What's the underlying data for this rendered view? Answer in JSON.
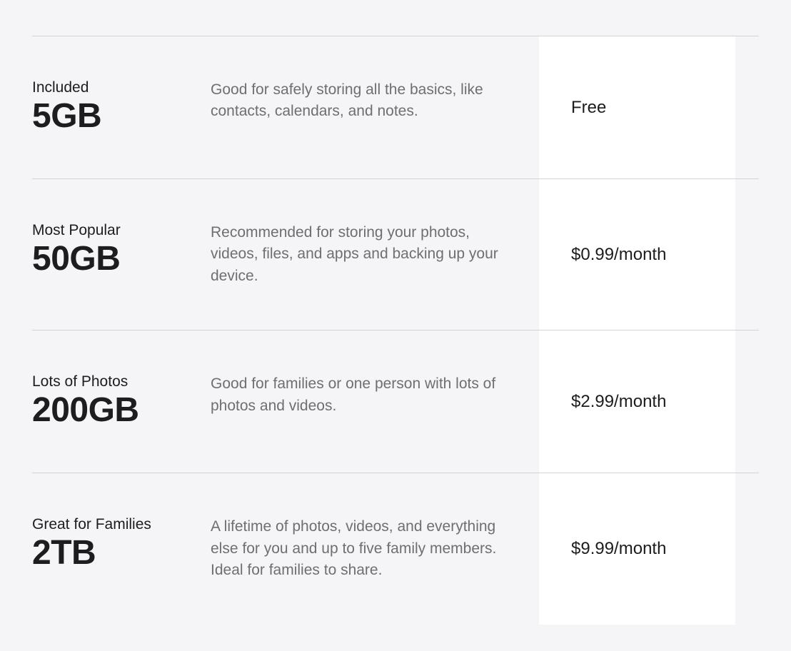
{
  "plans": [
    {
      "label": "Included",
      "size": "5GB",
      "description": "Good for safely storing all the basics, like contacts, calendars, and notes.",
      "price": "Free"
    },
    {
      "label": "Most Popular",
      "size": "50GB",
      "description": "Recommended for storing your photos, videos, files, and apps and backing up your device.",
      "price": "$0.99/month"
    },
    {
      "label": "Lots of Photos",
      "size": "200GB",
      "description": "Good for families or one person with lots of photos and videos.",
      "price": "$2.99/month"
    },
    {
      "label": "Great for Families",
      "size": "2TB",
      "description": "A lifetime of photos, videos, and everything else for you and up to five family members. Ideal for families to share.",
      "price": "$9.99/month"
    }
  ],
  "styling": {
    "background_color": "#f5f5f7",
    "price_background_color": "#ffffff",
    "border_color": "#d2d2d7",
    "text_color_primary": "#1d1d1f",
    "text_color_secondary": "#6e6e73",
    "label_fontsize": 21,
    "size_fontsize": 48,
    "description_fontsize": 21,
    "price_fontsize": 24
  }
}
